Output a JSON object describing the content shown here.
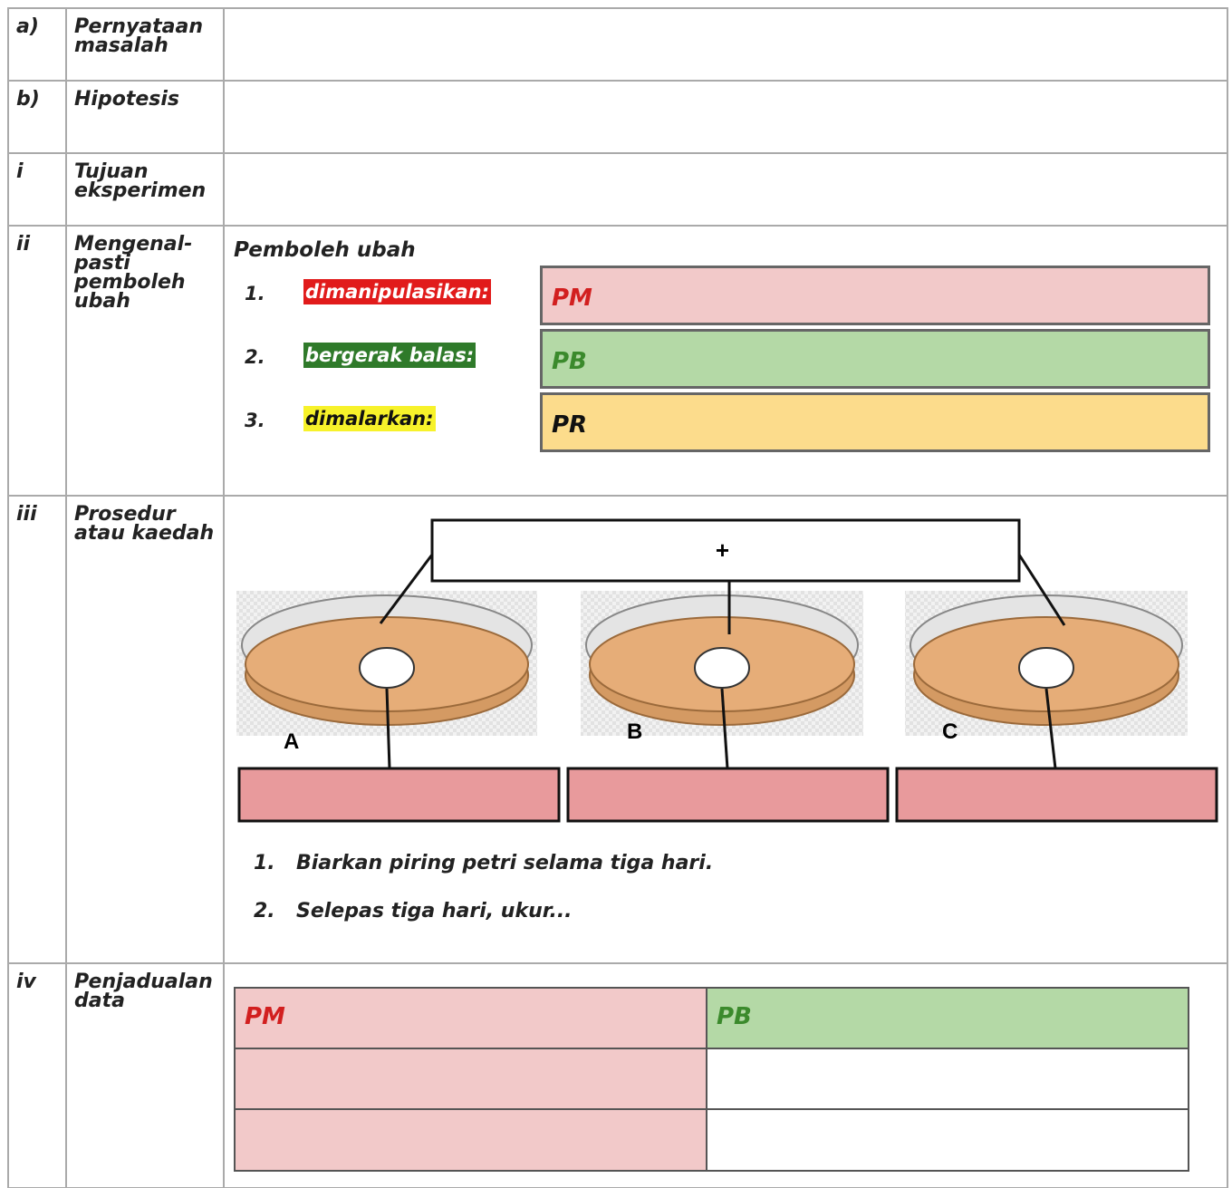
{
  "rows": [
    {
      "number": "a)",
      "label": "Pernyataan masalah"
    },
    {
      "number": "b)",
      "label": "Hipotesis"
    },
    {
      "number": "i",
      "label": "Tujuan eksperimen"
    },
    {
      "number": "ii",
      "label": "Mengenal-pasti pemboleh ubah"
    },
    {
      "number": "iii",
      "label": "Prosedur atau kaedah"
    },
    {
      "number": "iv",
      "label": "Penjadualan data"
    }
  ],
  "variables": {
    "heading": "Pemboleh ubah",
    "items": [
      {
        "number": "1.",
        "label": "dimanipulasikan:",
        "box": "PM"
      },
      {
        "number": "2.",
        "label": "bergerak balas:",
        "box": "PB"
      },
      {
        "number": "3.",
        "label": "dimalarkan:",
        "box": "PR"
      }
    ]
  },
  "procedure": {
    "setup_label": "+",
    "dishes": [
      "A",
      "B",
      "C"
    ],
    "steps": [
      {
        "number": "1.",
        "text": "Biarkan piring petri selama tiga hari."
      },
      {
        "number": "2.",
        "text": "Selepas tiga hari, ukur..."
      }
    ]
  },
  "data_table": {
    "headers": [
      "PM",
      "PB"
    ]
  }
}
